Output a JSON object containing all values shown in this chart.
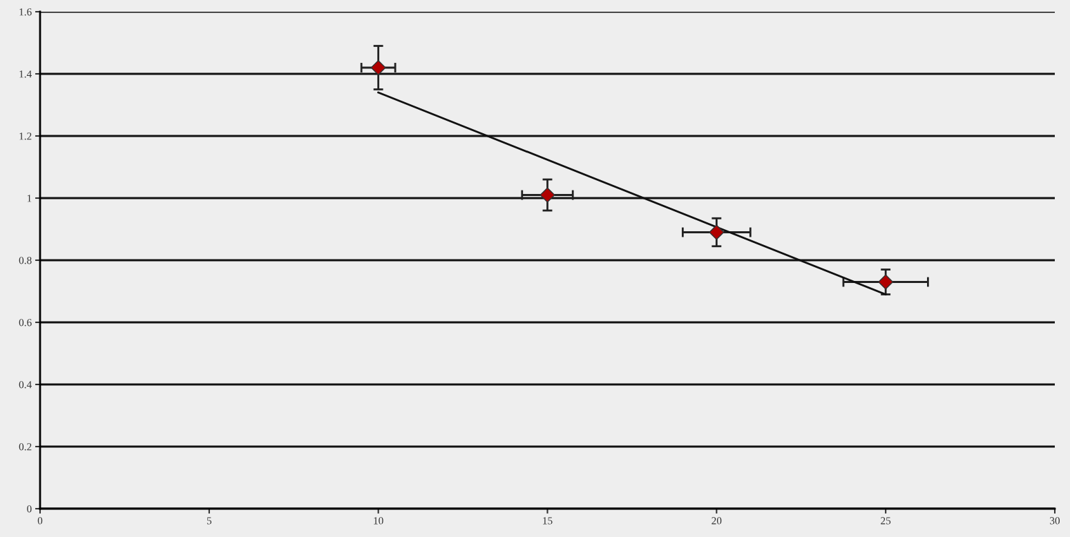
{
  "chart_data": {
    "type": "scatter",
    "xlim": [
      0,
      30
    ],
    "xticks": [
      0,
      5,
      10,
      15,
      20,
      25,
      30
    ],
    "ylim": [
      0,
      1.6
    ],
    "yticks": [
      0,
      0.2,
      0.4,
      0.6,
      0.8,
      1,
      1.2,
      1.4,
      1.6
    ],
    "grid": "y",
    "marker": "diamond",
    "series": [
      {
        "color": "#b00000",
        "x": [
          10,
          15,
          20,
          25
        ],
        "values": [
          1.42,
          1.01,
          0.89,
          0.73
        ],
        "errors": [
          0.07,
          0.05,
          0.045,
          0.04
        ],
        "xerrors": [
          0.5,
          0.75,
          1.0,
          1.25
        ]
      },
      {
        "type": "line",
        "color": "#111111",
        "x": [
          10,
          25
        ],
        "values": [
          1.34,
          0.69
        ],
        "marker": "none",
        "line_style": "solid"
      }
    ]
  }
}
